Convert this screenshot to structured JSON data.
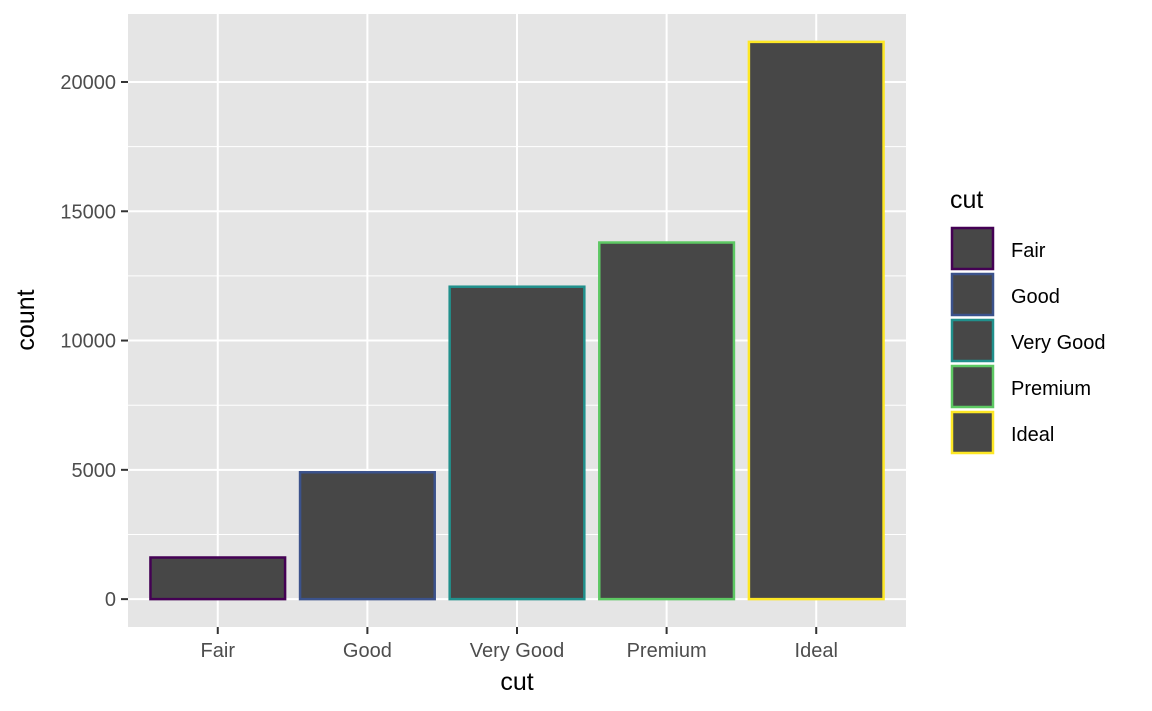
{
  "chart_data": {
    "type": "bar",
    "xlabel": "cut",
    "ylabel": "count",
    "categories": [
      "Fair",
      "Good",
      "Very Good",
      "Premium",
      "Ideal"
    ],
    "values": [
      1610,
      4906,
      12082,
      13791,
      21551
    ],
    "ylim": [
      -1078,
      22629
    ],
    "y_ticks": [
      0,
      5000,
      10000,
      15000,
      20000
    ],
    "y_tick_labels": [
      "0",
      "5000",
      "10000",
      "15000",
      "20000"
    ],
    "grid": true,
    "legend": {
      "title": "cut",
      "position": "right",
      "entries": [
        "Fair",
        "Good",
        "Very Good",
        "Premium",
        "Ideal"
      ]
    },
    "colors": {
      "bar_fill": "#474747",
      "panel_background": "#e5e5e5",
      "grid": "#ffffff",
      "outlines": [
        "#440154",
        "#3b528b",
        "#21908c",
        "#5dc863",
        "#fde725"
      ]
    }
  }
}
